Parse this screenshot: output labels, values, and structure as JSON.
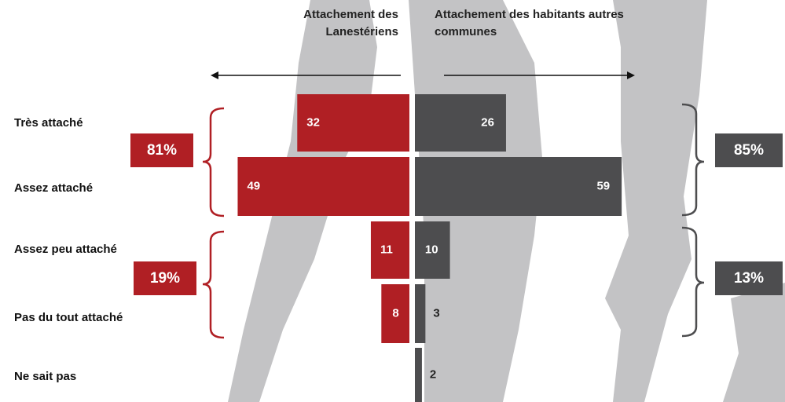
{
  "chart_data": {
    "type": "butterfly",
    "categories": [
      "Très attaché",
      "Assez attaché",
      "Assez peu attaché",
      "Pas du tout attaché",
      "Ne sait pas"
    ],
    "series": [
      {
        "name": "Attachement des Lanestériens",
        "color": "#b01f24",
        "values": [
          32,
          49,
          11,
          8,
          null
        ],
        "totals": [
          "81%",
          "19%"
        ]
      },
      {
        "name": "Attachement des habitants autres communes",
        "color": "#4d4d4f",
        "values": [
          26,
          59,
          10,
          3,
          2
        ],
        "totals": [
          "85%",
          "13%"
        ]
      }
    ]
  }
}
